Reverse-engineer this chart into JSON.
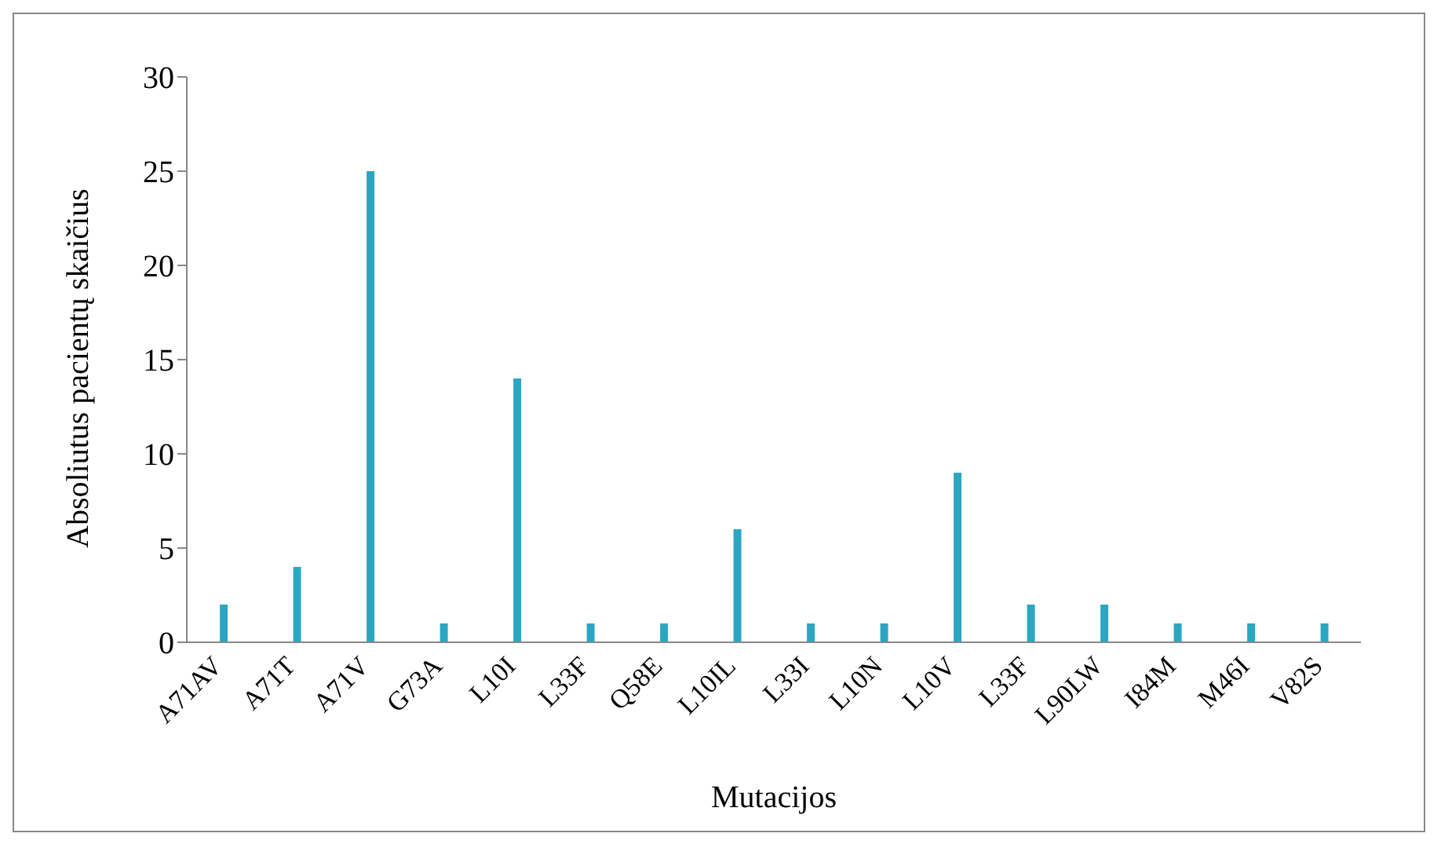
{
  "chart_data": {
    "type": "bar",
    "xlabel": "Mutacijos",
    "ylabel": "Absoliutus pacientų skaičius",
    "categories": [
      "A71AV",
      "A71T",
      "A71V",
      "G73A",
      "L10I",
      "L33F",
      "Q58E",
      "L10IL",
      "L33I",
      "L10N",
      "L10V",
      "L33F",
      "L90LW",
      "I84M",
      "M46I",
      "V82S"
    ],
    "values": [
      2,
      4,
      25,
      1,
      14,
      1,
      1,
      6,
      1,
      1,
      9,
      2,
      2,
      1,
      1,
      1
    ],
    "color": "#2ba6c2",
    "ylim": [
      0,
      30
    ],
    "yticks": [
      0,
      5,
      10,
      15,
      20,
      25,
      30
    ],
    "grid": false,
    "legend": false
  }
}
